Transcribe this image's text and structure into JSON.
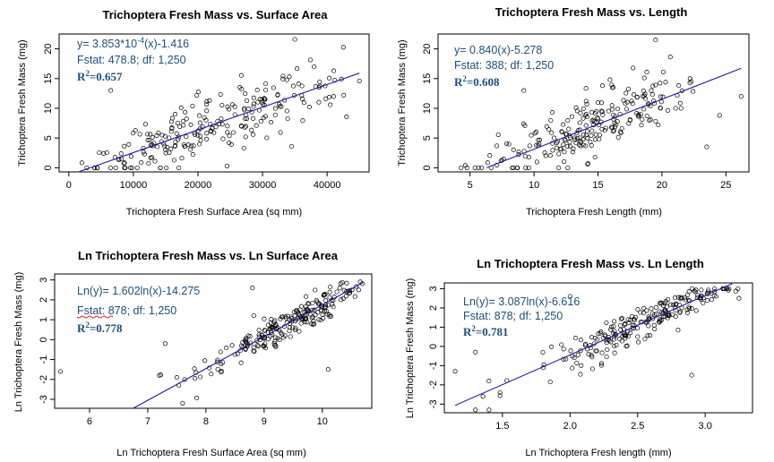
{
  "charts": [
    {
      "id": "p1",
      "title": "Trichoptera Fresh Mass vs. Surface Area",
      "xlabel": "Trichoptera Fresh Surface Area (sq mm)",
      "ylabel": "Trichoptera Fresh Mass (mg)",
      "eq_prefix": "y= 3.853*10",
      "eq_sup": "-4",
      "eq_suffix": "(x)-1.416",
      "fstat": "Fstat: 478.8; df: 1,250",
      "r2_label": "R",
      "r2_sup": "2",
      "r2_value": "=0.657",
      "xticks": [
        "0",
        "10000",
        "20000",
        "30000",
        "40000"
      ],
      "yticks": [
        "0",
        "5",
        "10",
        "15",
        "20"
      ]
    },
    {
      "id": "p2",
      "title": "Trichoptera Fresh Mass vs. Length",
      "xlabel": "Trichoptera Fresh Length (mm)",
      "ylabel": "Trichoptera Fresh Mass (mg)",
      "eq": "y= 0.840(x)-5.278",
      "fstat": "Fstat: 388; df: 1,250",
      "r2_label": "R",
      "r2_sup": "2",
      "r2_value": "=0.608",
      "xticks": [
        "5",
        "10",
        "15",
        "20",
        "25"
      ],
      "yticks": [
        "0",
        "5",
        "10",
        "15",
        "20"
      ]
    },
    {
      "id": "p3",
      "title": "Ln Trichoptera Fresh Mass vs. Ln Surface Area",
      "xlabel": "Ln Trichoptera Fresh Surface Area (sq mm)",
      "ylabel": "Ln Trichoptera Fresh Mass (mg)",
      "eq": "Ln(y)= 1.602ln(x)-14.275",
      "fstat": "Fstat: 878; df: 1,250",
      "r2_label": "R",
      "r2_sup": "2",
      "r2_value": "=0.778",
      "xticks": [
        "6",
        "7",
        "8",
        "9",
        "10"
      ],
      "yticks": [
        "-3",
        "-2",
        "-1",
        "0",
        "1",
        "2",
        "3"
      ]
    },
    {
      "id": "p4",
      "title": "Ln Trichoptera Fresh Mass vs. Ln Length",
      "xlabel": "Ln Trichoptera Fresh length (mm)",
      "ylabel": "Ln Trichoptera Fresh Mass (mg)",
      "eq": "Ln(y)= 3.087ln(x)-6.616",
      "fstat": "Fstat: 878; df: 1,250",
      "r2_label": "R",
      "r2_sup": "2",
      "r2_value": "=0.781",
      "xticks": [
        "1.5",
        "2.0",
        "2.5",
        "3.0"
      ],
      "yticks": [
        "-3",
        "-2",
        "-1",
        "0",
        "1",
        "2",
        "3"
      ]
    }
  ],
  "chart_data": [
    {
      "type": "scatter",
      "title": "Trichoptera Fresh Mass vs. Surface Area",
      "xlabel": "Trichoptera Fresh Surface Area (sq mm)",
      "ylabel": "Trichoptera Fresh Mass (mg)",
      "xlim": [
        -1500,
        46500
      ],
      "ylim": [
        -0.7,
        22.5
      ],
      "xticks": [
        0,
        10000,
        20000,
        30000,
        40000
      ],
      "yticks": [
        0,
        5,
        10,
        15,
        20
      ],
      "fit": {
        "slope": 0.0003853,
        "intercept": -1.416,
        "x_range": [
          1500,
          45000
        ]
      },
      "generator": {
        "seed": 11,
        "n": 230,
        "x_mean": 20000,
        "x_sd": 10000,
        "x_min": 1500,
        "x_max": 44000,
        "noise_sd": 3.3,
        "clip": [
          0,
          21.5
        ]
      },
      "points": [
        [
          6500,
          13.0
        ],
        [
          35000,
          21.6
        ],
        [
          24500,
          0.3
        ],
        [
          34500,
          3.6
        ],
        [
          41000,
          12.0
        ],
        [
          43000,
          8.6
        ],
        [
          45000,
          14.6
        ],
        [
          38000,
          17.0
        ]
      ],
      "grid": false
    },
    {
      "type": "scatter",
      "title": "Trichoptera Fresh Mass vs. Length",
      "xlabel": "Trichoptera Fresh Length (mm)",
      "ylabel": "Trichoptera Fresh Mass (mg)",
      "xlim": [
        2.5,
        26.8
      ],
      "ylim": [
        -0.7,
        22.5
      ],
      "xticks": [
        5,
        10,
        15,
        20,
        25
      ],
      "yticks": [
        0,
        5,
        10,
        15,
        20
      ],
      "fit": {
        "slope": 0.84,
        "intercept": -5.278,
        "x_range": [
          6.3,
          26.2
        ]
      },
      "generator": {
        "seed": 23,
        "n": 230,
        "x_mean": 14.5,
        "x_sd": 4.0,
        "x_min": 3.5,
        "x_max": 22.5,
        "noise_sd": 3.0,
        "clip": [
          0,
          21
        ]
      },
      "points": [
        [
          19.5,
          21.5
        ],
        [
          9.2,
          13.0
        ],
        [
          23.5,
          3.5
        ],
        [
          26.2,
          12.0
        ],
        [
          21.5,
          10.0
        ],
        [
          24.5,
          8.8
        ],
        [
          22.2,
          15.0
        ]
      ],
      "grid": false
    },
    {
      "type": "scatter",
      "title": "Ln Trichoptera Fresh Mass vs. Ln Surface Area",
      "xlabel": "Ln Trichoptera Fresh Surface Area (sq mm)",
      "ylabel": "Ln Trichoptera Fresh Mass (mg)",
      "xlim": [
        5.4,
        10.85
      ],
      "ylim": [
        -3.45,
        3.3
      ],
      "xticks": [
        6,
        7,
        8,
        9,
        10
      ],
      "yticks": [
        -3,
        -2,
        -1,
        0,
        1,
        2,
        3
      ],
      "fit": {
        "slope": 1.602,
        "intercept": -14.275,
        "x_range": [
          6.75,
          10.7
        ]
      },
      "generator": {
        "seed": 37,
        "n": 225,
        "x_mean": 9.65,
        "x_sd": 0.75,
        "x_min": 7.2,
        "x_max": 10.75,
        "noise_sd": 0.55,
        "clip": [
          -3.3,
          3.0
        ]
      },
      "points": [
        [
          5.5,
          -1.6
        ],
        [
          7.3,
          -0.2
        ],
        [
          8.8,
          2.6
        ],
        [
          10.1,
          -1.5
        ],
        [
          7.6,
          -3.2
        ],
        [
          7.2,
          -1.8
        ],
        [
          7.5,
          -1.9
        ]
      ],
      "grid": false
    },
    {
      "type": "scatter",
      "title": "Ln Trichoptera Fresh Mass vs. Ln Length",
      "xlabel": "Ln Trichoptera Fresh length (mm)",
      "ylabel": "Ln Trichoptera Fresh Mass (mg)",
      "xlim": [
        1.07,
        3.35
      ],
      "ylim": [
        -3.45,
        3.3
      ],
      "xticks": [
        1.5,
        2.0,
        2.5,
        3.0
      ],
      "yticks": [
        -3,
        -2,
        -1,
        0,
        1,
        2,
        3
      ],
      "fit": {
        "slope": 3.087,
        "intercept": -6.616,
        "x_range": [
          1.15,
          3.2
        ]
      },
      "generator": {
        "seed": 53,
        "n": 225,
        "x_mean": 2.55,
        "x_sd": 0.35,
        "x_min": 1.35,
        "x_max": 3.25,
        "noise_sd": 0.55,
        "clip": [
          -3.3,
          3.0
        ]
      },
      "points": [
        [
          1.15,
          -1.3
        ],
        [
          1.3,
          -3.3
        ],
        [
          1.4,
          -1.8
        ],
        [
          2.0,
          2.6
        ],
        [
          2.9,
          -1.5
        ],
        [
          3.25,
          2.5
        ],
        [
          1.3,
          -0.3
        ]
      ],
      "grid": false
    }
  ]
}
